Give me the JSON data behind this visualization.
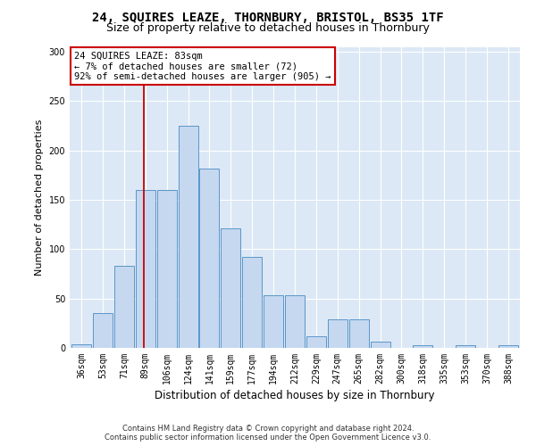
{
  "title": "24, SQUIRES LEAZE, THORNBURY, BRISTOL, BS35 1TF",
  "subtitle": "Size of property relative to detached houses in Thornbury",
  "xlabel": "Distribution of detached houses by size in Thornbury",
  "ylabel": "Number of detached properties",
  "bar_labels": [
    "36sqm",
    "53sqm",
    "71sqm",
    "89sqm",
    "106sqm",
    "124sqm",
    "141sqm",
    "159sqm",
    "177sqm",
    "194sqm",
    "212sqm",
    "229sqm",
    "247sqm",
    "265sqm",
    "282sqm",
    "300sqm",
    "318sqm",
    "335sqm",
    "353sqm",
    "370sqm",
    "388sqm"
  ],
  "bar_values": [
    4,
    35,
    83,
    160,
    160,
    225,
    182,
    121,
    92,
    53,
    53,
    12,
    29,
    29,
    6,
    0,
    3,
    0,
    3,
    0,
    3
  ],
  "bar_color": "#c5d8f0",
  "bar_edge_color": "#5b96c8",
  "vline_color": "#cc0000",
  "annotation_line1": "24 SQUIRES LEAZE: 83sqm",
  "annotation_line2": "← 7% of detached houses are smaller (72)",
  "annotation_line3": "92% of semi-detached houses are larger (905) →",
  "annotation_box_color": "#ffffff",
  "annotation_box_edge": "#cc0000",
  "footer1": "Contains HM Land Registry data © Crown copyright and database right 2024.",
  "footer2": "Contains public sector information licensed under the Open Government Licence v3.0.",
  "ylim": [
    0,
    305
  ],
  "yticks": [
    0,
    50,
    100,
    150,
    200,
    250,
    300
  ],
  "title_fontsize": 10,
  "subtitle_fontsize": 9,
  "ylabel_fontsize": 8,
  "xlabel_fontsize": 8.5,
  "tick_fontsize": 7,
  "footer_fontsize": 6,
  "annotation_fontsize": 7.5,
  "background_color": "#dce8f5",
  "grid_color": "#ffffff"
}
